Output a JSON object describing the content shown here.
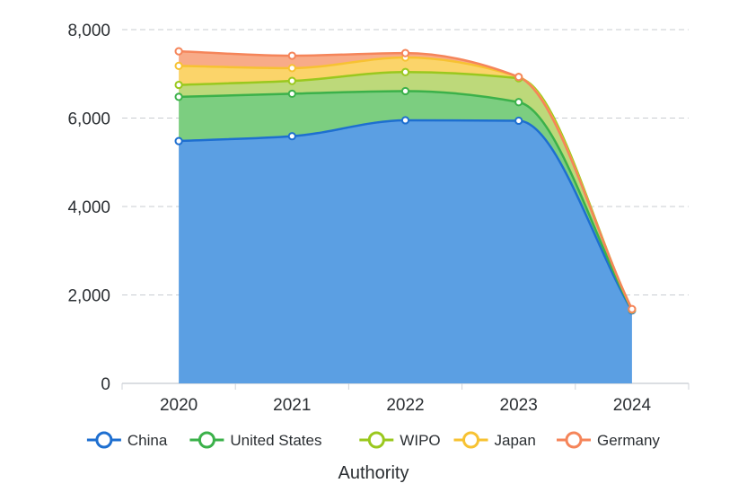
{
  "chart_data": {
    "type": "area",
    "stacked": true,
    "smooth": true,
    "categories": [
      "2020",
      "2021",
      "2022",
      "2023",
      "2024"
    ],
    "series": [
      {
        "name": "China",
        "values": [
          5480,
          5590,
          5950,
          5940,
          1650
        ],
        "color": "#1e6fd0",
        "fill": "#5b9fe3"
      },
      {
        "name": "United States",
        "values": [
          1000,
          960,
          660,
          420,
          20
        ],
        "color": "#3bb14a",
        "fill": "#7cce80"
      },
      {
        "name": "WIPO",
        "values": [
          270,
          290,
          430,
          540,
          0
        ],
        "color": "#9ac81e",
        "fill": "#bdd97a"
      },
      {
        "name": "Japan",
        "values": [
          430,
          290,
          330,
          30,
          0
        ],
        "color": "#f7c232",
        "fill": "#fbd46a"
      },
      {
        "name": "Germany",
        "values": [
          330,
          280,
          100,
          0,
          10
        ],
        "color": "#f5855a",
        "fill": "#f8ab88"
      }
    ],
    "y_ticks": [
      "0",
      "2,000",
      "4,000",
      "6,000",
      "8,000"
    ],
    "ylim": [
      0,
      8000
    ],
    "xlabel": "Authority",
    "grid": true,
    "legend_position": "bottom"
  }
}
